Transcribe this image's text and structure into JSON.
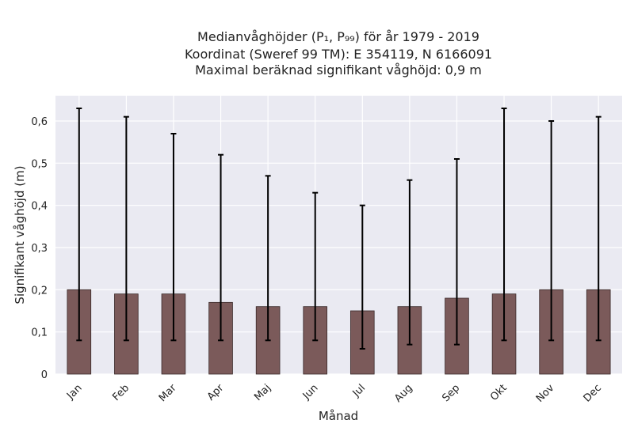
{
  "chart_data": {
    "type": "bar",
    "title": "Medianvåghöjder (P₁, P₉₉) för år 1979 - 2019",
    "subtitle_lines": [
      "Koordinat (Sweref 99 TM): E 354119, N 6166091",
      "Maximal beräknad signifikant våghöjd: 0,9 m"
    ],
    "xlabel": "Månad",
    "ylabel": "Signifikant våghöjd (m)",
    "categories": [
      "Jan",
      "Feb",
      "Mar",
      "Apr",
      "Maj",
      "Jun",
      "Jul",
      "Aug",
      "Sep",
      "Okt",
      "Nov",
      "Dec"
    ],
    "values": [
      0.2,
      0.19,
      0.19,
      0.17,
      0.16,
      0.16,
      0.15,
      0.16,
      0.18,
      0.19,
      0.2,
      0.2
    ],
    "error_low": [
      0.08,
      0.08,
      0.08,
      0.08,
      0.08,
      0.08,
      0.06,
      0.07,
      0.07,
      0.08,
      0.08,
      0.08
    ],
    "error_high": [
      0.63,
      0.61,
      0.57,
      0.52,
      0.47,
      0.43,
      0.4,
      0.46,
      0.51,
      0.63,
      0.6,
      0.61
    ],
    "yticks": [
      0,
      0.1,
      0.2,
      0.3,
      0.4,
      0.5,
      0.6
    ],
    "ytick_labels": [
      "0",
      "0,1",
      "0,2",
      "0,3",
      "0,4",
      "0,5",
      "0,6"
    ],
    "ylim": [
      0,
      0.66
    ],
    "grid": true,
    "colors": {
      "bar": "#7b5a5a",
      "bar_edge": "#3a2a2a",
      "error_bar": "#000000",
      "plot_background": "#eaeaf2",
      "grid": "#ffffff"
    }
  }
}
